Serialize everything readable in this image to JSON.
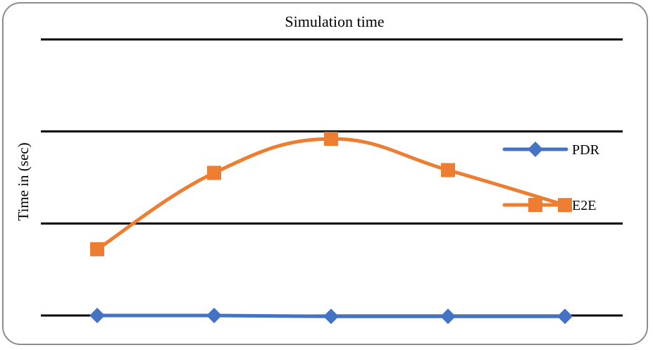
{
  "chart_data": {
    "type": "line",
    "title": "Simulation time",
    "xlabel": "",
    "ylabel": "Time in (sec)",
    "categories": [
      "",
      "",
      "",
      "",
      ""
    ],
    "ylim": [
      0,
      3
    ],
    "grid": true,
    "legend": "right",
    "series": [
      {
        "name": "PDR",
        "color": "#4472C4",
        "marker": "diamond",
        "smooth": false,
        "values": [
          0.0,
          0.0,
          -0.01,
          -0.01,
          -0.01
        ]
      },
      {
        "name": "E2E",
        "color": "#ED7D31",
        "marker": "square",
        "smooth": true,
        "values": [
          0.72,
          1.55,
          1.92,
          1.58,
          1.2
        ]
      }
    ]
  }
}
